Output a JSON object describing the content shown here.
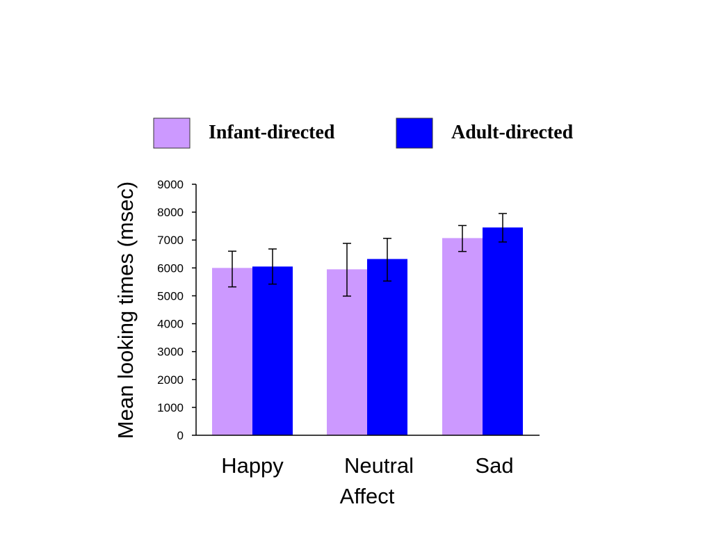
{
  "chart_data": {
    "type": "bar",
    "categories": [
      "Happy",
      "Neutral",
      "Sad"
    ],
    "series": [
      {
        "name": "Infant-directed",
        "color": "#cc99ff",
        "values": [
          6000,
          5950,
          7070
        ],
        "error_low": [
          5320,
          4990,
          6590
        ],
        "error_high": [
          6600,
          6880,
          7520
        ]
      },
      {
        "name": "Adult-directed",
        "color": "#0000ff",
        "values": [
          6050,
          6320,
          7450
        ],
        "error_low": [
          5420,
          5530,
          6930
        ],
        "error_high": [
          6680,
          7060,
          7950
        ]
      }
    ],
    "xlabel": "Affect",
    "ylabel": "Mean looking times (msec)",
    "ylim": [
      0,
      9000
    ],
    "yticks": [
      "0",
      "1000",
      "2000",
      "3000",
      "4000",
      "5000",
      "6000",
      "7000",
      "8000",
      "9000"
    ],
    "grid": false,
    "legend_position": "top"
  }
}
